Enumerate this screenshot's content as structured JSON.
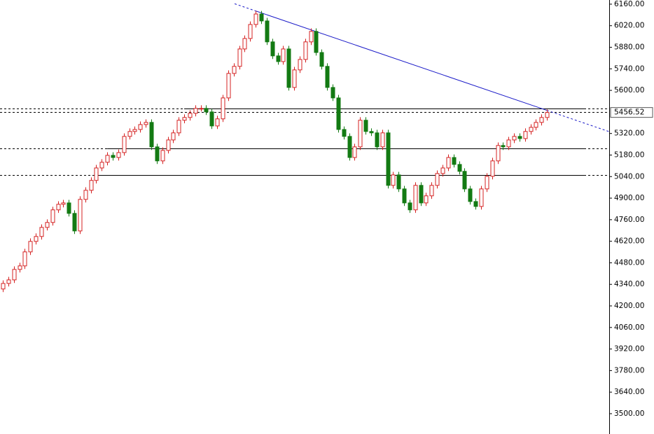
{
  "chart_data": {
    "type": "candlestick",
    "up_color": "#d42020",
    "down_color": "#137a13",
    "trend_color": "#1a1ac8",
    "level_color": "#000000",
    "ylim": [
      3368,
      6187
    ],
    "yticks": [
      {
        "value": 6160,
        "label": "6160.00"
      },
      {
        "value": 6020,
        "label": "6020.00"
      },
      {
        "value": 5880,
        "label": "5880.00"
      },
      {
        "value": 5740,
        "label": "5740.00"
      },
      {
        "value": 5600,
        "label": "5600.00"
      },
      {
        "value": 5320,
        "label": "5320.00"
      },
      {
        "value": 5180,
        "label": "5180.00"
      },
      {
        "value": 5040,
        "label": "5040.00"
      },
      {
        "value": 4900,
        "label": "4900.00"
      },
      {
        "value": 4760,
        "label": "4760.00"
      },
      {
        "value": 4620,
        "label": "4620.00"
      },
      {
        "value": 4480,
        "label": "4480.00"
      },
      {
        "value": 4340,
        "label": "4340.00"
      },
      {
        "value": 4200,
        "label": "4200.00"
      },
      {
        "value": 4060,
        "label": "4060.00"
      },
      {
        "value": 3920,
        "label": "3920.00"
      },
      {
        "value": 3780,
        "label": "3780.00"
      },
      {
        "value": 3640,
        "label": "3640.00"
      },
      {
        "value": 3500,
        "label": "3500.00"
      }
    ],
    "open": [
      4310,
      4346,
      4369,
      4437,
      4460,
      4551,
      4619,
      4651,
      4710,
      4742,
      4824,
      4860,
      4869,
      4801,
      4687,
      4892,
      4951,
      5015,
      5096,
      5133,
      5178,
      5164,
      5196,
      5301,
      5333,
      5346,
      5378,
      5392,
      5233,
      5142,
      5210,
      5278,
      5324,
      5406,
      5424,
      5451,
      5483,
      5483,
      5460,
      5369,
      5415,
      5551,
      5710,
      5756,
      5869,
      5937,
      6028,
      6096,
      6051,
      5915,
      5824,
      5787,
      5869,
      5619,
      5733,
      5801,
      5915,
      5983,
      5846,
      5756,
      5619,
      5551,
      5346,
      5301,
      5164,
      5233,
      5406,
      5333,
      5324,
      5233,
      5324,
      4983,
      5051,
      4960,
      4869,
      4824,
      4983,
      4869,
      4915,
      4983,
      5060,
      5096,
      5164,
      5119,
      5074,
      4960,
      4878,
      4846,
      4960,
      5042,
      5142,
      5242,
      5233,
      5278,
      5301,
      5287,
      5333,
      5360,
      5392,
      5424
    ],
    "high": [
      4366,
      4389,
      4457,
      4480,
      4571,
      4639,
      4671,
      4730,
      4762,
      4844,
      4880,
      4889,
      4889,
      4821,
      4912,
      4971,
      5035,
      5116,
      5153,
      5198,
      5198,
      5216,
      5321,
      5353,
      5366,
      5398,
      5412,
      5412,
      5253,
      5230,
      5298,
      5344,
      5426,
      5444,
      5471,
      5503,
      5503,
      5503,
      5480,
      5435,
      5571,
      5730,
      5776,
      5889,
      5957,
      6048,
      6116,
      6116,
      6071,
      5935,
      5844,
      5889,
      5889,
      5753,
      5821,
      5935,
      6003,
      6003,
      5866,
      5776,
      5639,
      5571,
      5366,
      5321,
      5253,
      5426,
      5426,
      5353,
      5344,
      5344,
      5344,
      5071,
      5071,
      4980,
      4889,
      5003,
      5003,
      4935,
      5003,
      5080,
      5116,
      5184,
      5184,
      5139,
      5094,
      4980,
      4898,
      4980,
      5062,
      5162,
      5262,
      5262,
      5298,
      5321,
      5321,
      5353,
      5380,
      5412,
      5444,
      5476
    ],
    "low": [
      4290,
      4326,
      4349,
      4417,
      4440,
      4531,
      4599,
      4631,
      4690,
      4722,
      4804,
      4840,
      4781,
      4667,
      4667,
      4872,
      4931,
      4995,
      5076,
      5113,
      5144,
      5144,
      5176,
      5281,
      5313,
      5326,
      5358,
      5213,
      5122,
      5122,
      5190,
      5258,
      5304,
      5386,
      5404,
      5431,
      5463,
      5440,
      5349,
      5349,
      5395,
      5531,
      5690,
      5736,
      5849,
      5917,
      6008,
      6031,
      5895,
      5804,
      5767,
      5767,
      5599,
      5599,
      5713,
      5781,
      5895,
      5826,
      5736,
      5599,
      5531,
      5326,
      5281,
      5144,
      5144,
      5213,
      5313,
      5304,
      5213,
      5213,
      4963,
      4963,
      4940,
      4849,
      4804,
      4804,
      4849,
      4849,
      4895,
      4963,
      5040,
      5076,
      5099,
      5054,
      4940,
      4858,
      4826,
      4826,
      4940,
      5022,
      5122,
      5213,
      5213,
      5258,
      5267,
      5267,
      5313,
      5340,
      5372,
      5404
    ],
    "close": [
      4346,
      4369,
      4437,
      4460,
      4551,
      4619,
      4651,
      4710,
      4742,
      4824,
      4860,
      4869,
      4801,
      4687,
      4892,
      4951,
      5015,
      5096,
      5133,
      5178,
      5164,
      5196,
      5301,
      5333,
      5346,
      5378,
      5392,
      5233,
      5142,
      5210,
      5278,
      5324,
      5406,
      5424,
      5451,
      5483,
      5483,
      5460,
      5369,
      5415,
      5551,
      5710,
      5756,
      5869,
      5937,
      6028,
      6096,
      6051,
      5915,
      5824,
      5787,
      5869,
      5619,
      5733,
      5801,
      5915,
      5983,
      5846,
      5756,
      5619,
      5551,
      5346,
      5301,
      5164,
      5233,
      5406,
      5333,
      5324,
      5233,
      5324,
      4983,
      5051,
      4960,
      4869,
      4824,
      4983,
      4869,
      4915,
      4983,
      5060,
      5096,
      5164,
      5119,
      5074,
      4960,
      4878,
      4846,
      4960,
      5042,
      5142,
      5242,
      5233,
      5278,
      5301,
      5287,
      5333,
      5360,
      5392,
      5424,
      5456.52
    ],
    "levels": [
      {
        "value": 5482,
        "start": 33
      },
      {
        "value": 5460
      },
      {
        "value": 5223,
        "start": 19
      },
      {
        "value": 5050,
        "start": 17
      }
    ],
    "trendline": [
      {
        "index": 46,
        "value": 6116
      },
      {
        "index": 99,
        "value": 5470
      }
    ]
  }
}
